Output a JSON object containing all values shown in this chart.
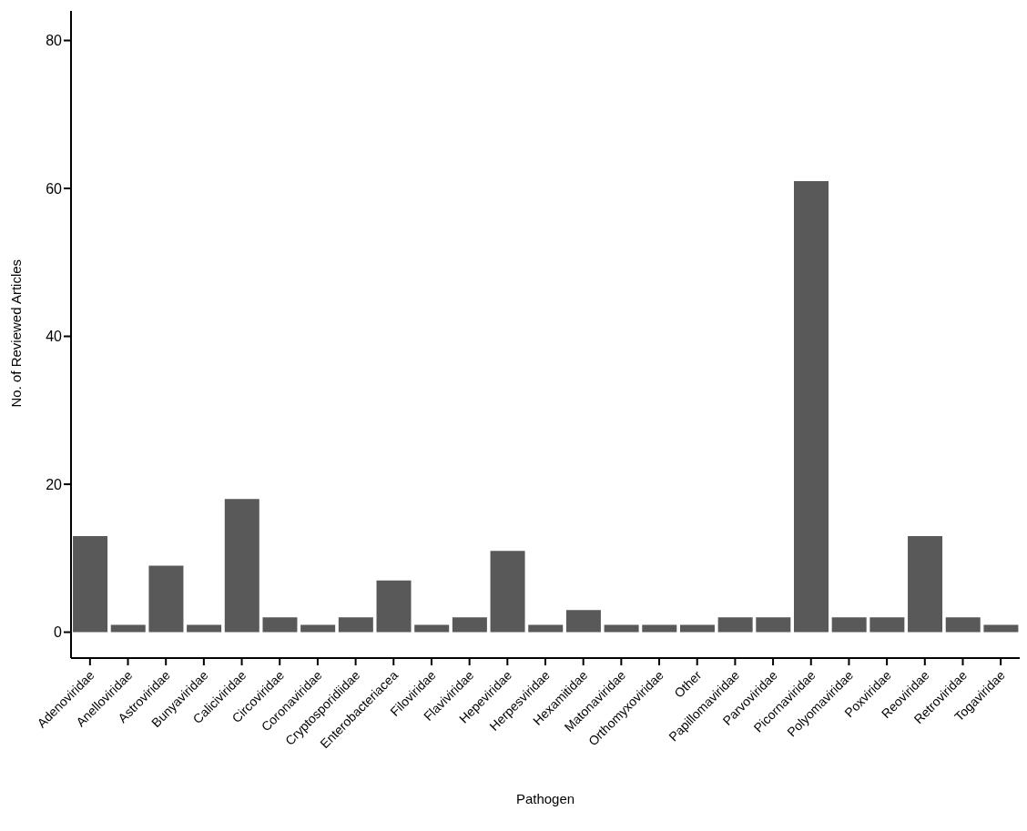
{
  "chart_data": {
    "type": "bar",
    "xlabel": "Pathogen",
    "ylabel": "No. of Reviewed Articles",
    "categories": [
      "Adenoviridae",
      "Anelloviridae",
      "Astroviridae",
      "Bunyaviridae",
      "Caliciviridae",
      "Circoviridae",
      "Coronaviridae",
      "Cryptosporidiidae",
      "Enterobacteriacea",
      "Filoviridae",
      "Flaviviridae",
      "Hepeviridae",
      "Herpesviridae",
      "Hexamitidae",
      "Matonaviridae",
      "Orthomyxoviridae",
      "Other",
      "Papillomaviridae",
      "Parvoviridae",
      "Picornaviridae",
      "Polyomaviridae",
      "Poxviridae",
      "Reoviridae",
      "Retroviridae",
      "Togaviridae"
    ],
    "values": [
      13,
      1,
      9,
      1,
      18,
      2,
      1,
      2,
      7,
      1,
      2,
      11,
      1,
      3,
      1,
      1,
      1,
      2,
      2,
      61,
      2,
      2,
      13,
      2,
      1
    ],
    "color": "#595959",
    "ylim": [
      -3.5,
      84
    ],
    "yticks": [
      0,
      20,
      40,
      60,
      80
    ],
    "grid": false,
    "legend": false
  }
}
